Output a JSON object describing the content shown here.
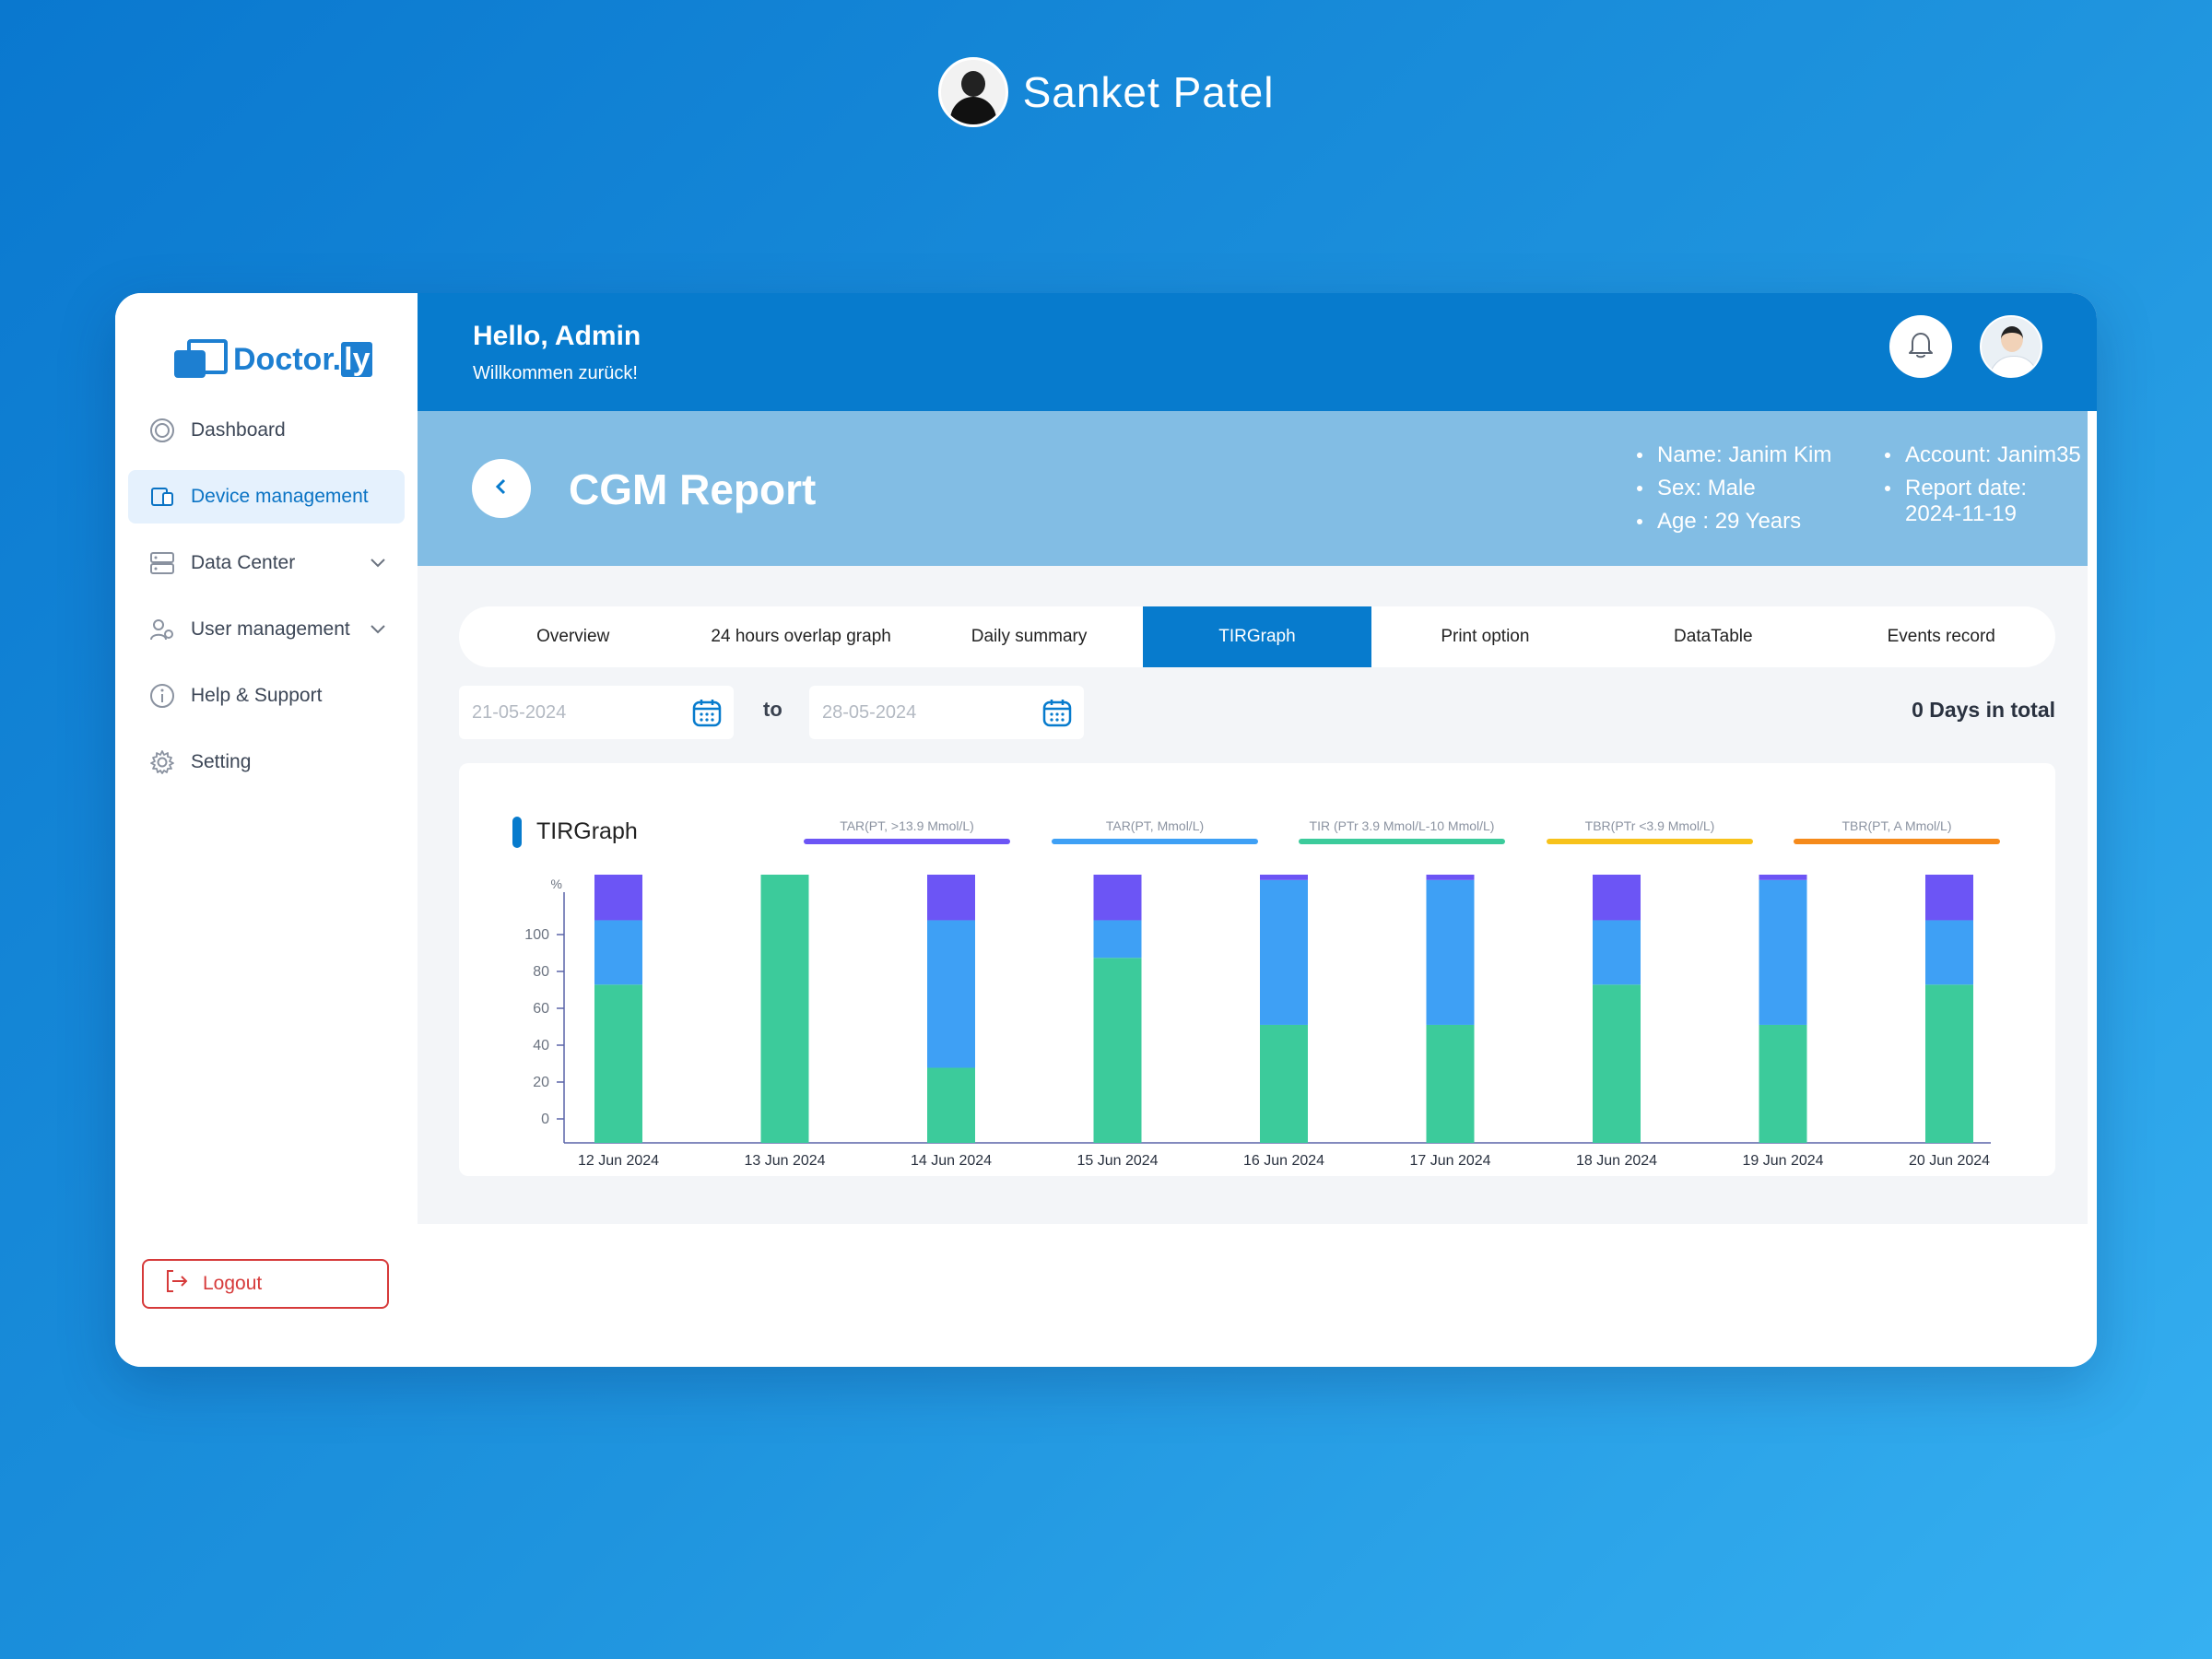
{
  "author": {
    "name": "Sanket Patel"
  },
  "logo": {
    "text": "Doctor.",
    "suffix": "ly"
  },
  "sidebar": {
    "items": [
      {
        "label": "Dashboard",
        "icon": "dashboard-icon"
      },
      {
        "label": "Device management",
        "icon": "device-icon",
        "active": true
      },
      {
        "label": "Data Center",
        "icon": "server-icon",
        "dropdown": true
      },
      {
        "label": "User management",
        "icon": "users-icon",
        "dropdown": true
      },
      {
        "label": "Help & Support",
        "icon": "info-icon"
      },
      {
        "label": "Setting",
        "icon": "gear-icon"
      }
    ],
    "logout": "Logout"
  },
  "header": {
    "greeting": "Hello, Admin",
    "subtitle": "Willkommen zurück!"
  },
  "report": {
    "title": "CGM Report",
    "name": "Name: Janim Kim",
    "sex": "Sex: Male",
    "age": "Age : 29 Years",
    "account": "Account: Janim35",
    "date": "Report date: 2024-11-19"
  },
  "tabs": [
    {
      "label": "Overview"
    },
    {
      "label": "24 hours overlap graph"
    },
    {
      "label": "Daily summary"
    },
    {
      "label": "TIRGraph",
      "active": true
    },
    {
      "label": "Print option"
    },
    {
      "label": "DataTable"
    },
    {
      "label": "Events record"
    }
  ],
  "filter": {
    "from_placeholder": "21-05-2024",
    "to_placeholder": "28-05-2024",
    "to_label": "to",
    "total": "0 Days in total"
  },
  "colors": {
    "primary": "#077bcd",
    "tar_high": "#6c55f5",
    "tar": "#3ea0f5",
    "tir": "#3ccb9b",
    "tbr": "#f7c21b",
    "tbr_low": "#f58a1b"
  },
  "chart_data": {
    "type": "bar",
    "stacked": true,
    "title": "TIRGraph",
    "ylabel": "%",
    "ylim": [
      0,
      100
    ],
    "yticks": [
      0,
      20,
      40,
      60,
      80,
      100
    ],
    "legend": [
      "TAR(PT, >13.9 Mmol/L)",
      "TAR(PT, Mmol/L)",
      "TIR (PTr 3.9 Mmol/L-10 Mmol/L)",
      "TBR(PTr <3.9 Mmol/L)",
      "TBR(PT, A Mmol/L)"
    ],
    "categories": [
      "12 Jun 2024",
      "13 Jun 2024",
      "14 Jun 2024",
      "15 Jun 2024",
      "16 Jun 2024",
      "17 Jun 2024",
      "18 Jun 2024",
      "19 Jun 2024",
      "20 Jun 2024"
    ],
    "series": [
      {
        "name": "TIR (PTr 3.9 Mmol/L-10 Mmol/L)",
        "values": [
          59,
          100,
          28,
          69,
          44,
          44,
          59,
          44,
          59
        ]
      },
      {
        "name": "TAR(PT, Mmol/L)",
        "values": [
          24,
          0,
          55,
          14,
          54,
          54,
          24,
          54,
          24
        ]
      },
      {
        "name": "TAR(PT, >13.9 Mmol/L)",
        "values": [
          17,
          0,
          17,
          17,
          2,
          2,
          17,
          2,
          17
        ]
      }
    ]
  }
}
